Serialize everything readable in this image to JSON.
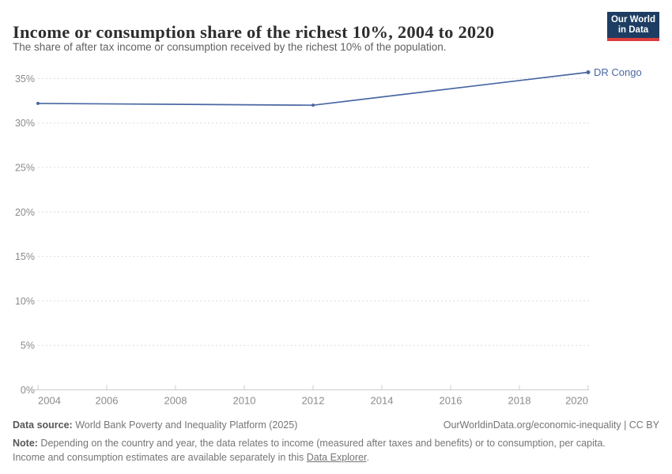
{
  "header": {
    "title": "Income or consumption share of the richest 10%, 2004 to 2020",
    "subtitle": "The share of after tax income or consumption received by the richest 10% of the population.",
    "logo": {
      "line1": "Our World",
      "line2": "in Data",
      "bg_color": "#1d3d63",
      "accent_color": "#dc3d3d"
    }
  },
  "chart_data": {
    "type": "line",
    "title": "Income or consumption share of the richest 10%, 2004 to 2020",
    "xlabel": "",
    "ylabel": "",
    "xlim": [
      2004,
      2020
    ],
    "ylim": [
      0,
      35
    ],
    "x_ticks": [
      2004,
      2006,
      2008,
      2010,
      2012,
      2014,
      2016,
      2018,
      2020
    ],
    "y_ticks": [
      0,
      5,
      10,
      15,
      20,
      25,
      30,
      35
    ],
    "y_tick_suffix": "%",
    "grid": "horizontal-dashed",
    "grid_color": "#dcdcdc",
    "axis_color": "#cccccc",
    "tick_label_color": "#8b8b8b",
    "series": [
      {
        "name": "DR Congo",
        "color": "#4a67a3",
        "x": [
          2004,
          2012,
          2020
        ],
        "values": [
          32.2,
          32.0,
          35.7
        ]
      }
    ],
    "legend_position": "end-of-line-label"
  },
  "footer": {
    "datasource_label": "Data source:",
    "datasource_text": " World Bank Poverty and Inequality Platform (2025)",
    "right_text": "OurWorldinData.org/economic-inequality | CC BY",
    "note": {
      "label": "Note:",
      "line1": " Depending on the country and year, the data relates to income (measured after taxes and benefits) or to consumption, per capita.",
      "line2_before_link": "Income and consumption estimates are available separately in this ",
      "link": "Data Explorer",
      "line2_after_link": "."
    }
  }
}
